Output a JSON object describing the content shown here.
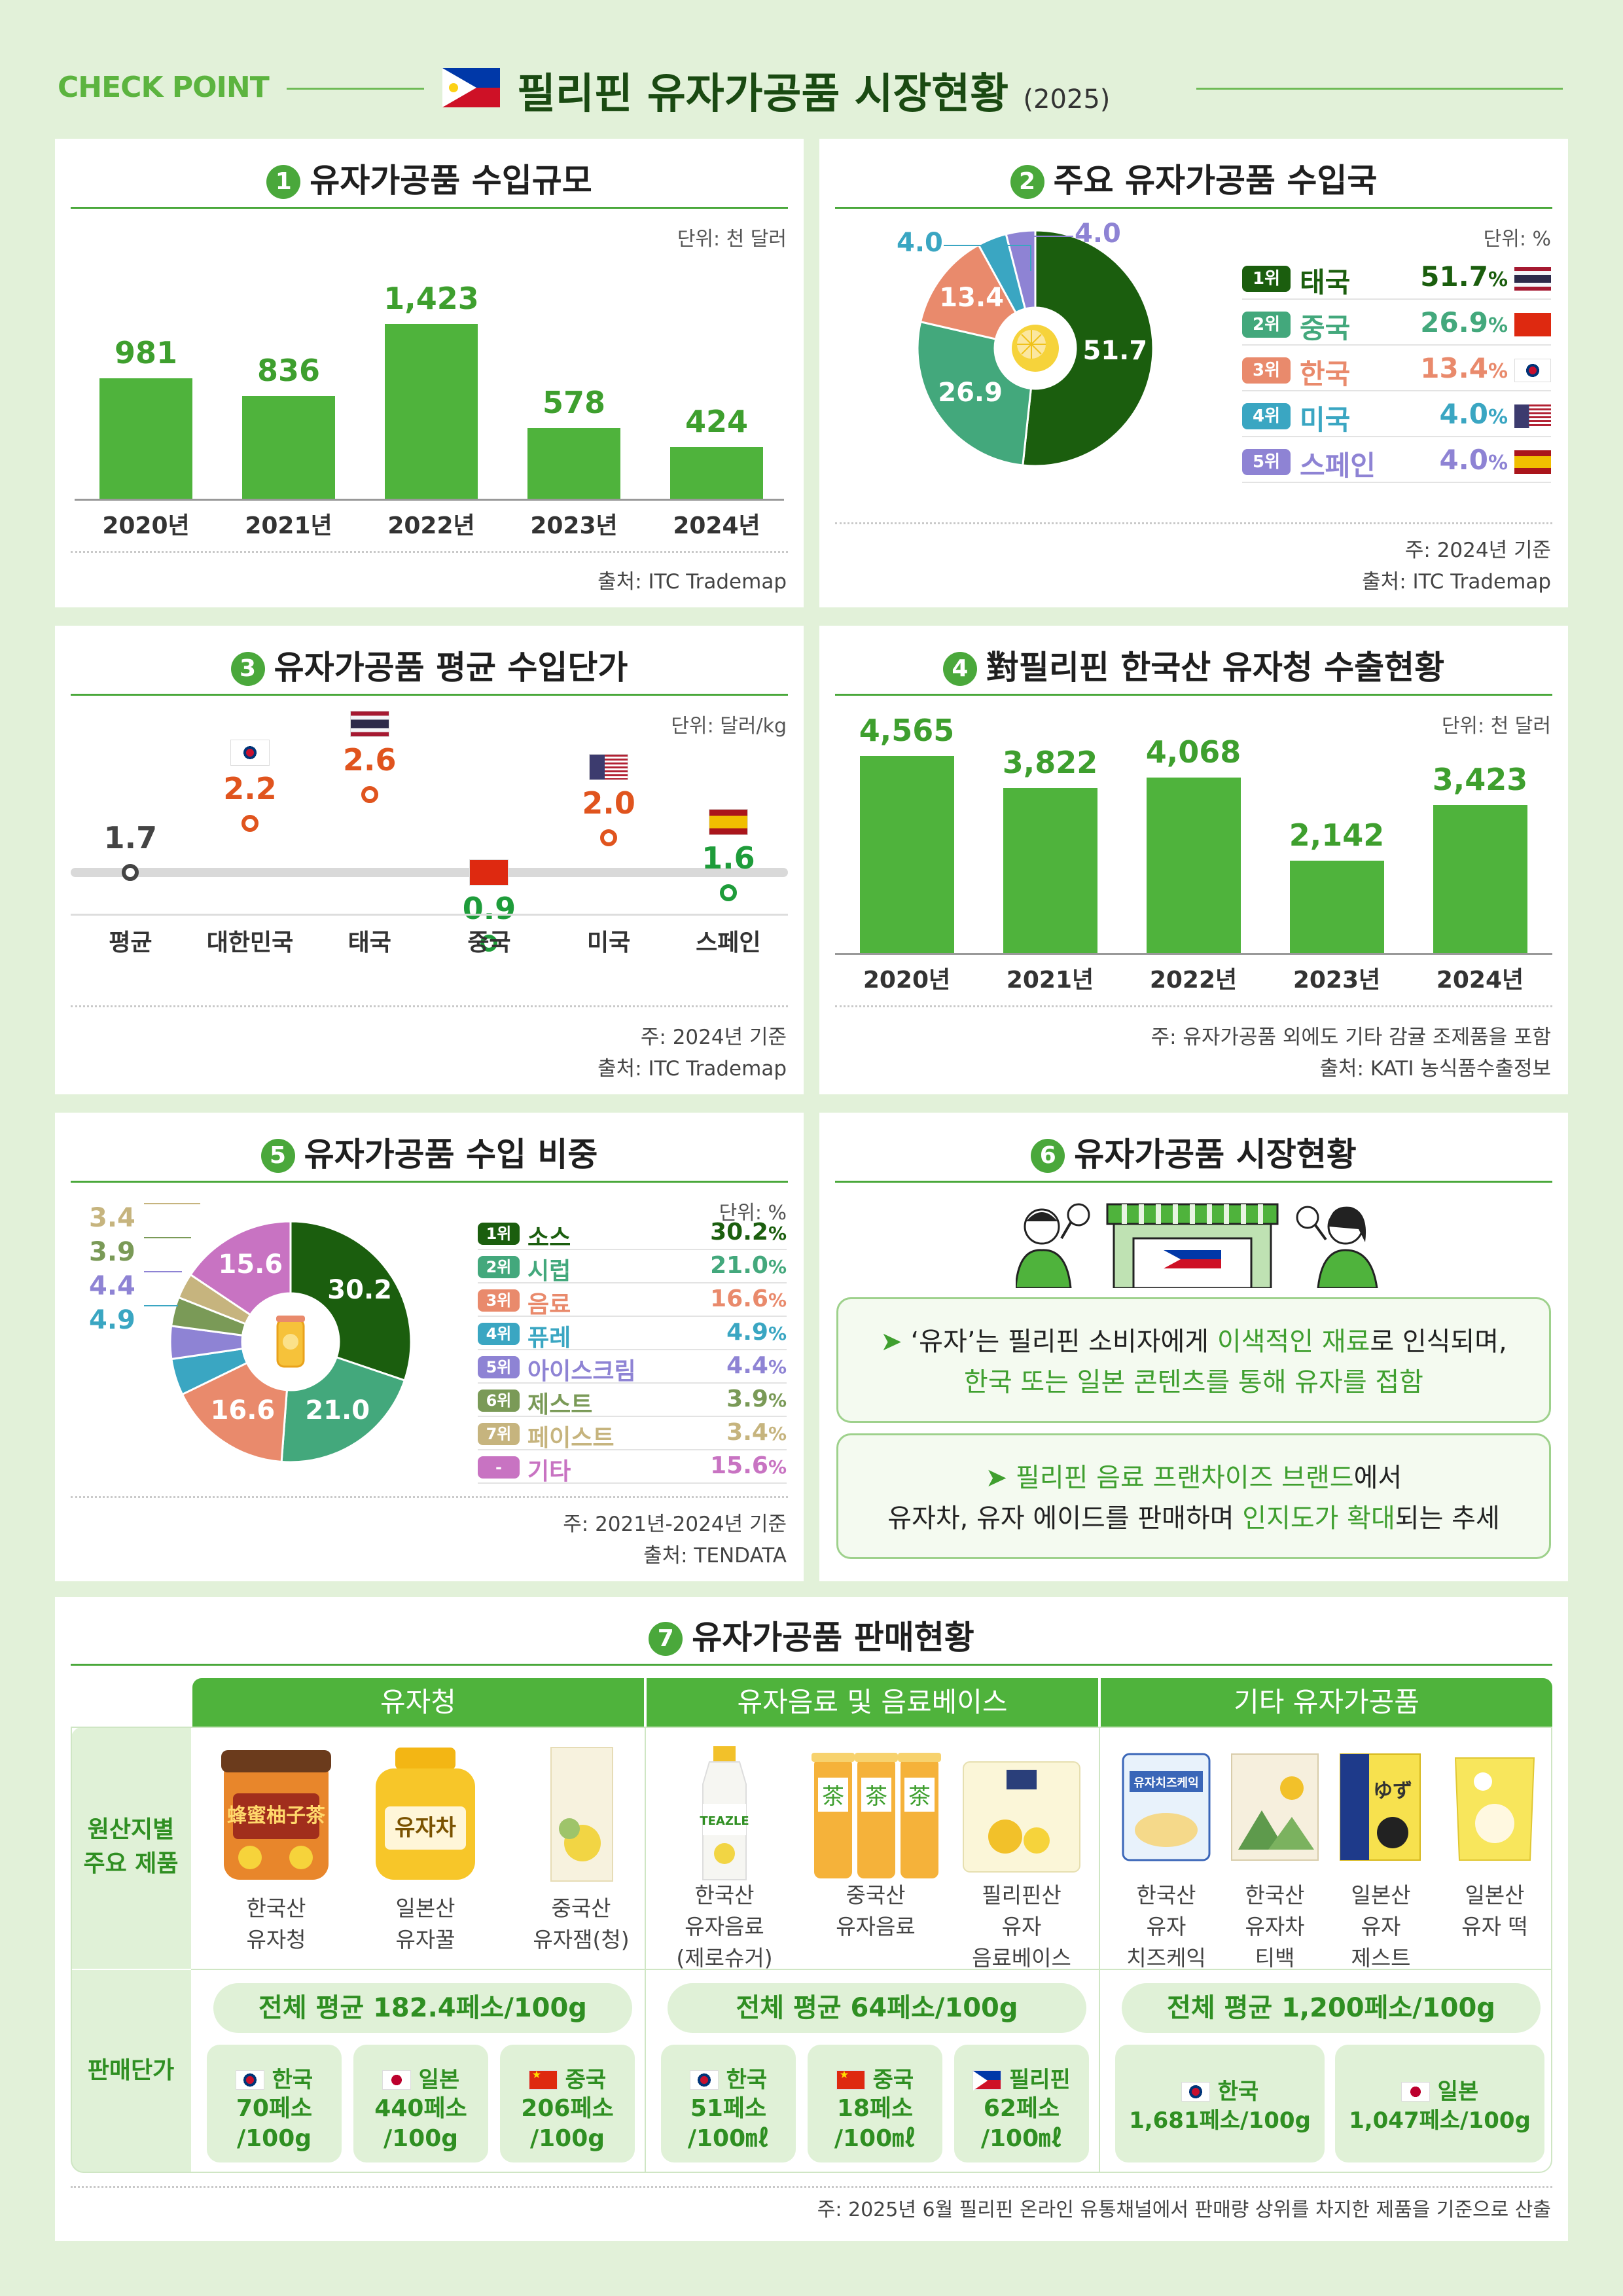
{
  "header": {
    "check_point": "CHECK POINT",
    "title": "필리핀 유자가공품 시장현황",
    "year": "(2025)"
  },
  "p1": {
    "num": "1",
    "title": "유자가공품 수입규모",
    "unit": "단위: 천 달러",
    "source": "출처: ITC Trademap",
    "chart_data": {
      "type": "bar",
      "categories": [
        "2020년",
        "2021년",
        "2022년",
        "2023년",
        "2024년"
      ],
      "values": [
        981,
        836,
        1423,
        578,
        424
      ],
      "value_labels": [
        "981",
        "836",
        "1,423",
        "578",
        "424"
      ],
      "ylim": [
        0,
        1600
      ]
    }
  },
  "p2": {
    "num": "2",
    "title": "주요 유자가공품 수입국",
    "unit": "단위: %",
    "note": "주: 2024년 기준",
    "source": "출처: ITC Trademap",
    "chart_data": {
      "type": "pie",
      "labels": [
        "태국",
        "중국",
        "한국",
        "미국",
        "스페인"
      ],
      "values": [
        51.7,
        26.9,
        13.4,
        4.0,
        4.0
      ],
      "slice_labels": [
        "51.7",
        "26.9",
        "13.4",
        "4.0",
        "4.0"
      ],
      "colors": [
        "#1b5e0e",
        "#43a87c",
        "#e98a6c",
        "#3aa6c2",
        "#8e83d4"
      ]
    },
    "legend": [
      {
        "rank": "1위",
        "name": "태국",
        "value": "51.7",
        "pct": "%",
        "color": "#1b5e0e"
      },
      {
        "rank": "2위",
        "name": "중국",
        "value": "26.9",
        "pct": "%",
        "color": "#43a87c"
      },
      {
        "rank": "3위",
        "name": "한국",
        "value": "13.4",
        "pct": "%",
        "color": "#e98a6c"
      },
      {
        "rank": "4위",
        "name": "미국",
        "value": "4.0",
        "pct": "%",
        "color": "#3aa6c2"
      },
      {
        "rank": "5위",
        "name": "스페인",
        "value": "4.0",
        "pct": "%",
        "color": "#8e83d4"
      }
    ]
  },
  "p3": {
    "num": "3",
    "title": "유자가공품 평균 수입단가",
    "unit": "단위: 달러/kg",
    "note": "주: 2024년 기준",
    "source": "출처: ITC Trademap",
    "chart_data": {
      "type": "scatter",
      "categories": [
        "평균",
        "대한민국",
        "태국",
        "중국",
        "미국",
        "스페인"
      ],
      "values": [
        1.7,
        2.2,
        2.6,
        0.9,
        2.0,
        1.6
      ],
      "value_labels": [
        "1.7",
        "2.2",
        "2.6",
        "0.9",
        "2.0",
        "1.6"
      ],
      "colors": [
        "#444444",
        "#e0541e",
        "#e0541e",
        "#1e9c3a",
        "#e0541e",
        "#1e9c3a"
      ],
      "baseline": 1.7
    }
  },
  "p4": {
    "num": "4",
    "title": "對필리핀 한국산 유자청 수출현황",
    "unit": "단위: 천 달러",
    "note": "주: 유자가공품 외에도 기타 감귤 조제품을 포함",
    "source": "출처: KATI 농식품수출정보",
    "chart_data": {
      "type": "bar",
      "categories": [
        "2020년",
        "2021년",
        "2022년",
        "2023년",
        "2024년"
      ],
      "values": [
        4565,
        3822,
        4068,
        2142,
        3423
      ],
      "value_labels": [
        "4,565",
        "3,822",
        "4,068",
        "2,142",
        "3,423"
      ],
      "ylim": [
        0,
        5000
      ]
    }
  },
  "p5": {
    "num": "5",
    "title": "유자가공품 수입 비중",
    "unit": "단위: %",
    "note": "주: 2021년-2024년 기준",
    "source": "출처: TENDATA",
    "chart_data": {
      "type": "pie",
      "labels": [
        "소스",
        "시럽",
        "음료",
        "퓨레",
        "아이스크림",
        "제스트",
        "페이스트",
        "기타"
      ],
      "values": [
        30.2,
        21.0,
        16.6,
        4.9,
        4.4,
        3.9,
        3.4,
        15.6
      ],
      "slice_labels": [
        "30.2",
        "21.0",
        "16.6",
        "4.9",
        "4.4",
        "3.9",
        "3.4",
        "15.6"
      ],
      "colors": [
        "#1b5e0e",
        "#43a87c",
        "#e98a6c",
        "#3aa6c2",
        "#8e83d4",
        "#7a9a57",
        "#c6b47e",
        "#c873c2"
      ]
    },
    "legend": [
      {
        "rank": "1위",
        "name": "소스",
        "value": "30.2",
        "pct": "%",
        "color": "#1b5e0e"
      },
      {
        "rank": "2위",
        "name": "시럽",
        "value": "21.0",
        "pct": "%",
        "color": "#43a87c"
      },
      {
        "rank": "3위",
        "name": "음료",
        "value": "16.6",
        "pct": "%",
        "color": "#e98a6c"
      },
      {
        "rank": "4위",
        "name": "퓨레",
        "value": "4.9",
        "pct": "%",
        "color": "#3aa6c2"
      },
      {
        "rank": "5위",
        "name": "아이스크림",
        "value": "4.4",
        "pct": "%",
        "color": "#8e83d4"
      },
      {
        "rank": "6위",
        "name": "제스트",
        "value": "3.9",
        "pct": "%",
        "color": "#7a9a57"
      },
      {
        "rank": "7위",
        "name": "페이스트",
        "value": "3.4",
        "pct": "%",
        "color": "#c6b47e"
      },
      {
        "rank": "-",
        "name": "기타",
        "value": "15.6",
        "pct": "%",
        "color": "#c873c2"
      }
    ]
  },
  "p6": {
    "num": "6",
    "title": "유자가공품 시장현황",
    "card1": {
      "l1a": "‘유자’는 필리핀 소비자에게 ",
      "l1b": "이색적인 재료",
      "l1c": "로 인식되며,",
      "l2": "한국 또는 일본 콘텐츠를 통해 유자를 접함"
    },
    "card2": {
      "l1a": "필리핀 음료 프랜차이즈 브랜드",
      "l1b": "에서",
      "l2a": "유자차, 유자 에이드를 판매하며 ",
      "l2b": "인지도가 확대",
      "l2c": "되는 추세"
    }
  },
  "p7": {
    "num": "7",
    "title": "유자가공품 판매현황",
    "side_products": "원산지별\n주요 제품",
    "side_price": "판매단가",
    "groups": [
      {
        "header": "유자청",
        "products": [
          "한국산\n유자청",
          "일본산\n유자꿀",
          "중국산\n유자잼(청)"
        ],
        "average": "전체 평균 182.4페소/100g",
        "prices": [
          {
            "country": "한국",
            "price": "70페소\n/100g"
          },
          {
            "country": "일본",
            "price": "440페소\n/100g"
          },
          {
            "country": "중국",
            "price": "206페소\n/100g"
          }
        ]
      },
      {
        "header": "유자음료 및 음료베이스",
        "products": [
          "한국산\n유자음료\n(제로슈거)",
          "중국산\n유자음료",
          "필리핀산\n유자\n음료베이스"
        ],
        "average": "전체 평균 64페소/100g",
        "prices": [
          {
            "country": "한국",
            "price": "51페소\n/100㎖"
          },
          {
            "country": "중국",
            "price": "18페소\n/100㎖"
          },
          {
            "country": "필리핀",
            "price": "62페소\n/100㎖"
          }
        ]
      },
      {
        "header": "기타 유자가공품",
        "products": [
          "한국산\n유자\n치즈케익",
          "한국산\n유자차\n티백",
          "일본산\n유자\n제스트",
          "일본산\n유자 떡"
        ],
        "average": "전체 평균 1,200페소/100g",
        "prices": [
          {
            "country": "한국",
            "price": "1,681페소/100g"
          },
          {
            "country": "일본",
            "price": "1,047페소/100g"
          }
        ]
      }
    ],
    "package_text": {
      "kr_yuzu": "유자차",
      "tea": "茶",
      "teazle": "TEAZLE",
      "cheesecake": "유자치즈케익",
      "jp_zest": "ゆず"
    },
    "note": "주:  2025년 6월  필리핀 온라인 유통채널에서 판매량 상위를 차지한 제품을 기준으로 산출"
  },
  "colors": {
    "background": "#e2f1d9",
    "accent": "#4aa83b",
    "bar": "#4fb33c"
  }
}
